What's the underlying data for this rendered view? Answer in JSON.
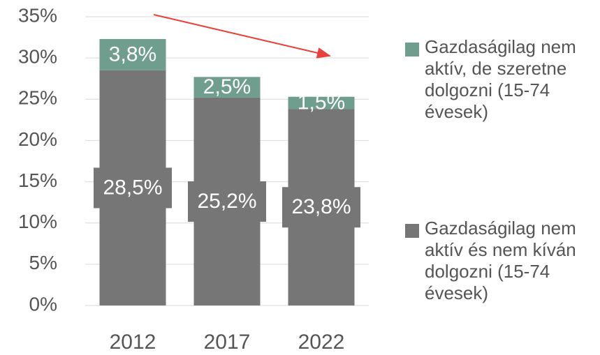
{
  "chart_data": {
    "type": "stacked_bar",
    "categories": [
      "2012",
      "2017",
      "2022"
    ],
    "series": [
      {
        "name": "Gazdaságilag nem aktív és nem kíván dolgozni (15-74 évesek)",
        "color": "#767676",
        "values": [
          28.5,
          25.2,
          23.8
        ],
        "value_labels": [
          "28,5%",
          "25,2%",
          "23,8%"
        ]
      },
      {
        "name": "Gazdaságilag nem aktív, de szeretne dolgozni (15-74 évesek)",
        "color": "#6f9e8f",
        "values": [
          3.8,
          2.5,
          1.5
        ],
        "value_labels": [
          "3,8%",
          "2,5%",
          "1,5%"
        ]
      }
    ],
    "ylim": [
      0,
      35
    ],
    "yticks": [
      {
        "value": 0,
        "label": "0%"
      },
      {
        "value": 5,
        "label": "5%"
      },
      {
        "value": 10,
        "label": "10%"
      },
      {
        "value": 15,
        "label": "15%"
      },
      {
        "value": 20,
        "label": "20%"
      },
      {
        "value": 25,
        "label": "25%"
      },
      {
        "value": 30,
        "label": "30%"
      },
      {
        "value": 35,
        "label": "35%"
      }
    ],
    "grid": true,
    "legend": "right"
  }
}
